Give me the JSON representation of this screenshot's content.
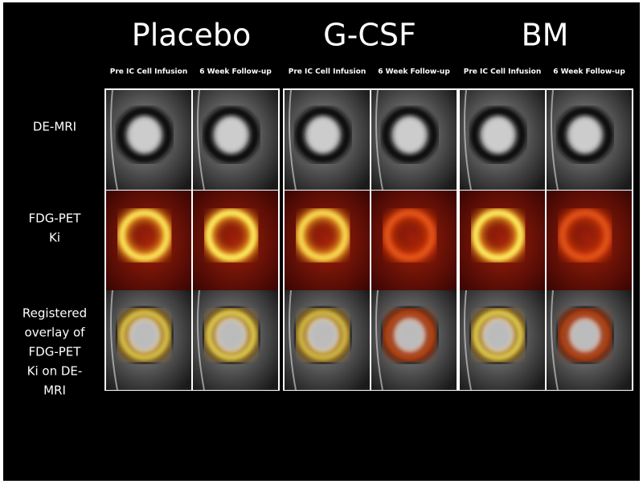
{
  "header": {
    "groups": [
      {
        "title": "Placebo",
        "subtitles": [
          "Pre IC Cell Infusion",
          "6 Week Follow-up"
        ]
      },
      {
        "title": "G-CSF",
        "subtitles": [
          "Pre IC Cell Infusion",
          "6 Week Follow-up"
        ]
      },
      {
        "title": "BM",
        "subtitles": [
          "Pre IC Cell Infusion",
          "6 Week Follow-up"
        ]
      }
    ]
  },
  "rows": [
    {
      "label_lines": [
        "DE-MRI"
      ]
    },
    {
      "label_lines": [
        "FDG-PET",
        "Ki"
      ]
    },
    {
      "label_lines": [
        "Registered",
        "overlay of",
        "FDG-PET",
        "Ki on DE-",
        "MRI"
      ]
    }
  ]
}
